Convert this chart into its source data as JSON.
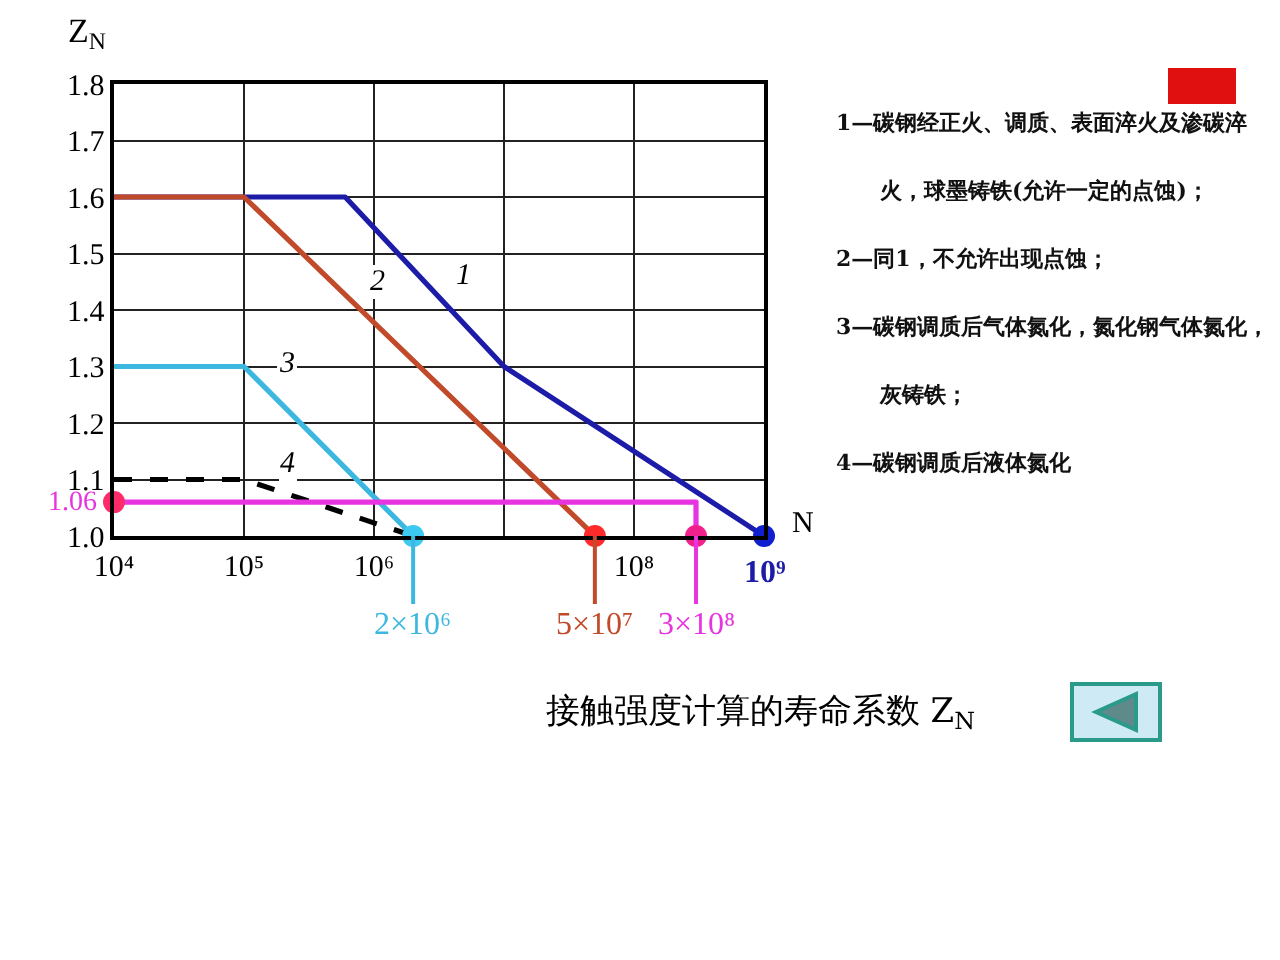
{
  "chart_data": {
    "type": "line",
    "title": "接触强度计算的寿命系数 Z$_{N}$",
    "xlabel": "N",
    "ylabel": "Z$_{N}$",
    "log": "x",
    "grid": true,
    "legend": false,
    "line_style": "solid",
    "xlim": [
      10000,
      1000000000
    ],
    "xticks": [
      {
        "value": 10000,
        "label": "10⁴"
      },
      {
        "value": 100000,
        "label": "10⁵"
      },
      {
        "value": 1000000,
        "label": "10⁶"
      },
      {
        "value": 10000000,
        "label": null
      },
      {
        "value": 100000000,
        "label": "10⁸"
      },
      {
        "value": 1000000000,
        "label": null
      }
    ],
    "ylim": [
      1.0,
      1.8
    ],
    "yticks": [
      {
        "value": 1,
        "label": "1.0"
      },
      1.1,
      1.2,
      1.3,
      1.4,
      1.5,
      1.6,
      1.7,
      1.8
    ],
    "series": [
      {
        "name": "1",
        "color": "#1c1ca8",
        "x": [
          10000,
          600000,
          10000000,
          1000000000
        ],
        "values": [
          1.6,
          1.6,
          1.3,
          1.0
        ]
      },
      {
        "name": "2",
        "color": "#c04a2a",
        "x": [
          10000,
          100000,
          50000000
        ],
        "values": [
          1.6,
          1.6,
          1.0
        ]
      },
      {
        "name": "3",
        "color": "#3cb8e0",
        "x": [
          10000,
          100000,
          2000000
        ],
        "values": [
          1.3,
          1.3,
          1.0
        ]
      },
      {
        "name": "4",
        "color": "#000000",
        "line_style": "dashed",
        "x": [
          10000,
          100000,
          2000000
        ],
        "values": [
          1.1,
          1.1,
          1.0
        ]
      },
      {
        "color": "#e833e0",
        "x": [
          10000,
          300000000,
          300000000
        ],
        "values": [
          1.06,
          1.06,
          1.0
        ]
      },
      {
        "type": "scatter",
        "marker": "circle",
        "x": [
          2000000,
          50000000,
          300000000,
          1000000000,
          10000
        ],
        "values": [
          1.0,
          1.0,
          1.0,
          1.0,
          1.06
        ],
        "colors": [
          "#3cc8f0",
          "#ff2a2a",
          "#f0208c",
          "#1020d0",
          "#ff2a6a"
        ]
      }
    ],
    "annotations": [
      {
        "text": "1.06",
        "x": 10000,
        "y": 1.06
      },
      {
        "text": "2×10⁶",
        "x": 2000000,
        "y": 1.0
      },
      {
        "text": "5×10⁷",
        "x": 50000000,
        "y": 1.0
      },
      {
        "text": "3×10⁸",
        "x": 300000000,
        "y": 1.0
      },
      {
        "text": "10⁹",
        "x": 1000000000,
        "y": 1.0
      },
      "1—碳钢经正火、调质、表面淬火及渗碳淬火，球墨铸铁(允许一定的点蚀)；",
      "2—同1，不允许出现点蚀；",
      "3—碳钢调质后气体氮化，氮化钢气体氮化，灰铸铁；",
      "4—碳钢调质后液体氮化"
    ]
  }
}
